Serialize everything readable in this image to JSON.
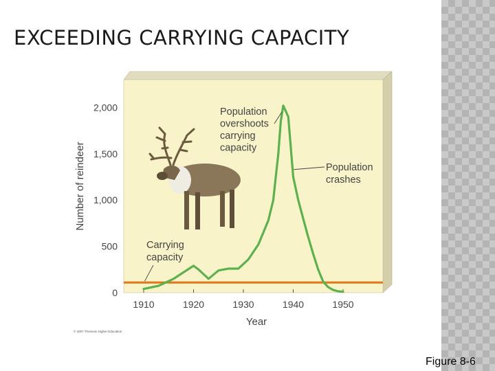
{
  "slide": {
    "title": "EXCEEDING CARRYING CAPACITY",
    "figure_label": "Figure 8-6",
    "credit": "© 2007 Thomson Higher Education"
  },
  "colors": {
    "plot_background": "#f8f3c8",
    "population_line": "#5cb04e",
    "carrying_capacity_line": "#e07a1f"
  },
  "chart_data": {
    "type": "line",
    "xlabel": "Year",
    "ylabel": "Number of reindeer",
    "xlim": [
      1906,
      1958
    ],
    "ylim": [
      0,
      2300
    ],
    "x_ticks": [
      1910,
      1920,
      1930,
      1940,
      1950
    ],
    "x_tick_labels": [
      "1910",
      "1920",
      "1930",
      "1940",
      "1950"
    ],
    "y_ticks": [
      0,
      500,
      1000,
      1500,
      2000
    ],
    "y_tick_labels": [
      "0",
      "500",
      "1,000",
      "1,500",
      "2,000"
    ],
    "series": [
      {
        "key": "population",
        "x": [
          1910,
          1913,
          1916,
          1918,
          1920,
          1921,
          1922,
          1923,
          1925,
          1927,
          1929,
          1931,
          1933,
          1935,
          1936,
          1937,
          1937.5,
          1938,
          1939,
          1940,
          1941,
          1942,
          1943,
          1944,
          1945,
          1946,
          1947,
          1948,
          1949,
          1950
        ],
        "y": [
          40,
          75,
          150,
          220,
          290,
          250,
          200,
          150,
          240,
          260,
          260,
          360,
          520,
          780,
          1000,
          1500,
          1850,
          2020,
          1900,
          1250,
          1000,
          800,
          600,
          420,
          250,
          120,
          60,
          30,
          15,
          10
        ]
      },
      {
        "key": "carrying_capacity",
        "x": [
          1906,
          1958
        ],
        "y": [
          110,
          110
        ]
      }
    ],
    "annotations": [
      {
        "key": "overshoot",
        "lines": [
          "Population",
          "overshoots",
          "carrying",
          "capacity"
        ],
        "target": [
          1937.7,
          1950
        ]
      },
      {
        "key": "crash",
        "lines": [
          "Population",
          "crashes"
        ],
        "target": [
          1940.1,
          1330
        ]
      },
      {
        "key": "capacity",
        "lines": [
          "Carrying",
          "capacity"
        ],
        "target": [
          1910.2,
          125
        ]
      }
    ]
  }
}
